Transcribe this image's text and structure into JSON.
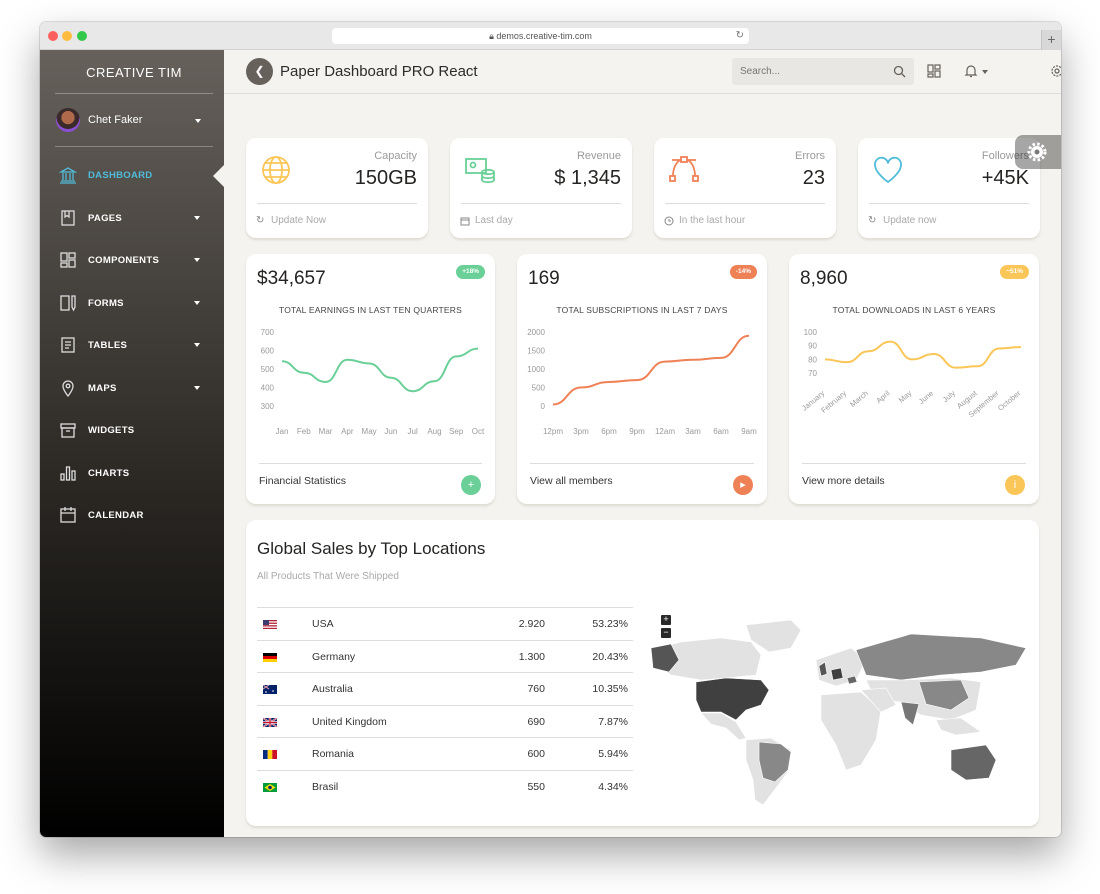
{
  "browser": {
    "url": "demos.creative-tim.com"
  },
  "sidebar": {
    "brand": "CREATIVE TIM",
    "user_name": "Chet Faker",
    "items": [
      {
        "label": "DASHBOARD",
        "icon": "bank-icon"
      },
      {
        "label": "PAGES",
        "icon": "book-icon"
      },
      {
        "label": "COMPONENTS",
        "icon": "layout-icon"
      },
      {
        "label": "FORMS",
        "icon": "clipboard-icon"
      },
      {
        "label": "TABLES",
        "icon": "paper-icon"
      },
      {
        "label": "MAPS",
        "icon": "pin-icon"
      },
      {
        "label": "WIDGETS",
        "icon": "box-icon"
      },
      {
        "label": "CHARTS",
        "icon": "bar-chart-icon"
      },
      {
        "label": "CALENDAR",
        "icon": "calendar-icon"
      }
    ]
  },
  "topbar": {
    "title": "Paper Dashboard PRO React",
    "search_placeholder": "Search..."
  },
  "stats": [
    {
      "label": "Capacity",
      "value": "150GB",
      "footer": "Update Now",
      "color": "#fbc658"
    },
    {
      "label": "Revenue",
      "value": "$ 1,345",
      "footer": "Last day",
      "color": "#6bd098"
    },
    {
      "label": "Errors",
      "value": "23",
      "footer": "In the last hour",
      "color": "#ef8157"
    },
    {
      "label": "Followers",
      "value": "+45K",
      "footer": "Update now",
      "color": "#51bcda"
    }
  ],
  "charts": [
    {
      "big": "$34,657",
      "badge": "+18%",
      "badge_color": "#6bd098",
      "subtitle": "TOTAL EARNINGS IN LAST TEN QUARTERS",
      "footer": "Financial Statistics",
      "button_icon": "+",
      "button_color": "#6bd098"
    },
    {
      "big": "169",
      "badge": "-14%",
      "badge_color": "#ef8157",
      "subtitle": "TOTAL SUBSCRIPTIONS IN LAST 7 DAYS",
      "footer": "View all members",
      "button_icon": "▸",
      "button_color": "#ef8157"
    },
    {
      "big": "8,960",
      "badge": "~51%",
      "badge_color": "#fbc658",
      "subtitle": "TOTAL DOWNLOADS IN LAST 6 YEARS",
      "footer": "View more details",
      "button_icon": "i",
      "button_color": "#fbc658"
    }
  ],
  "chart_data": [
    {
      "type": "line",
      "title": "TOTAL EARNINGS IN LAST TEN QUARTERS",
      "categories": [
        "Jan",
        "Feb",
        "Mar",
        "Apr",
        "May",
        "Jun",
        "Jul",
        "Aug",
        "Sep",
        "Oct"
      ],
      "series": [
        {
          "values": [
            542,
            480,
            430,
            550,
            530,
            453,
            380,
            434,
            568,
            610
          ]
        }
      ],
      "yticks": [
        700,
        600,
        500,
        400,
        300
      ],
      "ylim": [
        300,
        700
      ],
      "color": "#6bd098"
    },
    {
      "type": "line",
      "title": "TOTAL SUBSCRIPTIONS IN LAST 7 DAYS",
      "categories": [
        "12pm",
        "3pm",
        "6pm",
        "9pm",
        "12am",
        "3am",
        "6am",
        "9am"
      ],
      "series": [
        {
          "values": [
            40,
            500,
            650,
            700,
            1200,
            1250,
            1300,
            1900
          ]
        }
      ],
      "yticks": [
        2000,
        1500,
        1000,
        500,
        0
      ],
      "ylim": [
        0,
        2000
      ],
      "color": "#ef8157"
    },
    {
      "type": "line",
      "title": "TOTAL DOWNLOADS IN LAST 6 YEARS",
      "categories": [
        "January",
        "February",
        "March",
        "April",
        "May",
        "June",
        "July",
        "August",
        "September",
        "October"
      ],
      "series": [
        {
          "values": [
            80,
            78,
            86,
            93,
            80,
            84,
            74,
            75,
            88,
            89
          ]
        }
      ],
      "yticks": [
        100,
        90,
        80,
        70
      ],
      "ylim": [
        65,
        100
      ],
      "color": "#fbc658"
    }
  ],
  "sales": {
    "title": "Global Sales by Top Locations",
    "subtitle": "All Products That Were Shipped",
    "rows": [
      {
        "country": "USA",
        "value": "2.920",
        "pct": "53.23%",
        "flag": "us-flag-icon"
      },
      {
        "country": "Germany",
        "value": "1.300",
        "pct": "20.43%",
        "flag": "de-flag-icon"
      },
      {
        "country": "Australia",
        "value": "760",
        "pct": "10.35%",
        "flag": "au-flag-icon"
      },
      {
        "country": "United Kingdom",
        "value": "690",
        "pct": "7.87%",
        "flag": "gb-flag-icon"
      },
      {
        "country": "Romania",
        "value": "600",
        "pct": "5.94%",
        "flag": "ro-flag-icon"
      },
      {
        "country": "Brasil",
        "value": "550",
        "pct": "4.34%",
        "flag": "br-flag-icon"
      }
    ]
  }
}
